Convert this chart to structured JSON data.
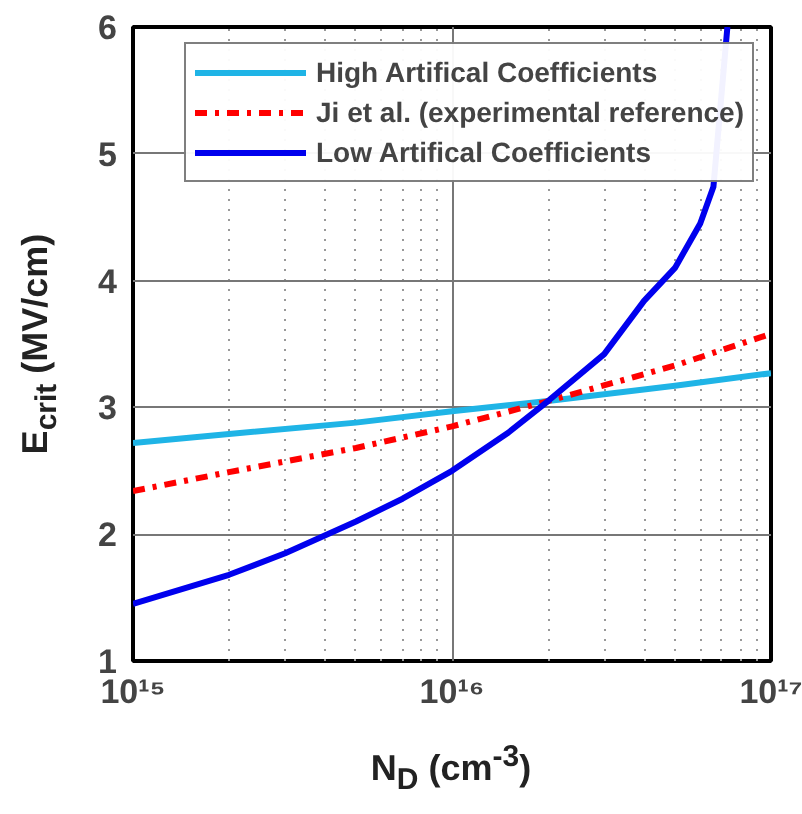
{
  "chart_data": {
    "type": "line",
    "xlabel": "N$_{D}$ (cm$^{-3}$)",
    "ylabel": "E$_{crit}$ (MV/cm)",
    "log": "x",
    "xlim": [
      1000000000000000.0,
      1e+17
    ],
    "xticks": [
      {
        "value": 1000000000000000.0,
        "label": "10¹⁵"
      },
      {
        "value": 1e+16,
        "label": "10¹⁶"
      },
      {
        "value": 1e+17,
        "label": "10¹⁷"
      }
    ],
    "ylim": [
      1,
      6
    ],
    "yticks": [
      1,
      2,
      3,
      4,
      5,
      6
    ],
    "grid": true,
    "legend": "top right",
    "series": [
      {
        "name": "High Artifical Coefficients",
        "color": "#1fb4e6",
        "line_style": "solid",
        "x": [
          1000000000000000.0,
          2000000000000000.0,
          5000000000000000.0,
          1e+16,
          2e+16,
          5e+16,
          1e+17
        ],
        "values": [
          2.72,
          2.79,
          2.88,
          2.97,
          3.05,
          3.17,
          3.27
        ]
      },
      {
        "name": "Ji et al. (experimental reference)",
        "color": "#ff0000",
        "line_style": "dashdot",
        "x": [
          1000000000000000.0,
          2000000000000000.0,
          5000000000000000.0,
          1e+16,
          2e+16,
          5e+16,
          1e+17
        ],
        "values": [
          2.34,
          2.49,
          2.68,
          2.85,
          3.05,
          3.33,
          3.58
        ]
      },
      {
        "name": "Low Artifical Coefficients",
        "color": "#0000ee",
        "line_style": "solid",
        "x": [
          1000000000000000.0,
          2000000000000000.0,
          3000000000000000.0,
          5000000000000000.0,
          7000000000000000.0,
          1e+16,
          1.5e+16,
          2e+16,
          3e+16,
          4e+16,
          5e+16,
          6e+16,
          6.6e+16,
          7.3e+16
        ],
        "values": [
          1.45,
          1.68,
          1.85,
          2.1,
          2.28,
          2.5,
          2.8,
          3.05,
          3.42,
          3.84,
          4.1,
          4.45,
          4.74,
          6.0
        ]
      }
    ]
  }
}
